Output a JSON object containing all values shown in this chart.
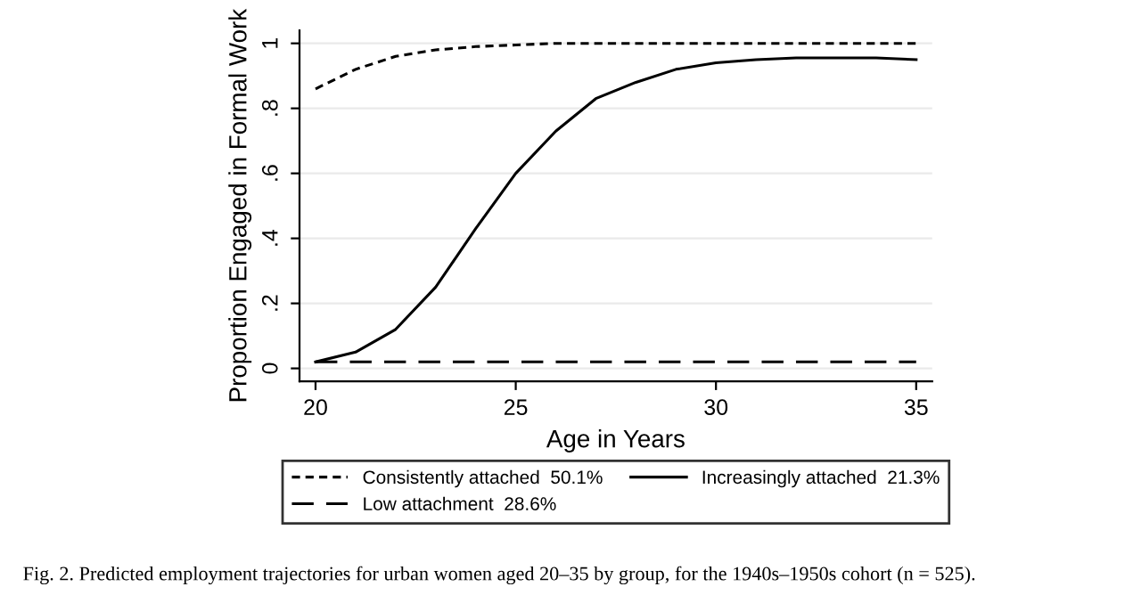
{
  "chart_data": {
    "type": "line",
    "xlabel": "Age in Years",
    "ylabel": "Proportion Engaged in Formal Work",
    "x": [
      20,
      21,
      22,
      23,
      24,
      25,
      26,
      27,
      28,
      29,
      30,
      31,
      32,
      33,
      34,
      35
    ],
    "series": [
      {
        "name": "Consistently attached  50.1%",
        "color": "#000000",
        "line_style": "dashed",
        "values": [
          0.86,
          0.92,
          0.96,
          0.98,
          0.99,
          0.995,
          1,
          1,
          1,
          1,
          1,
          1,
          1,
          1,
          1,
          1
        ]
      },
      {
        "name": "Low attachment  28.6%",
        "color": "#000000",
        "line_style": "dashed",
        "values": [
          0.02,
          0.02,
          0.02,
          0.02,
          0.02,
          0.02,
          0.02,
          0.02,
          0.02,
          0.02,
          0.02,
          0.02,
          0.02,
          0.02,
          0.02,
          0.02
        ]
      },
      {
        "name": "Increasingly attached  21.3%",
        "color": "#000000",
        "line_style": "solid",
        "values": [
          0.02,
          0.05,
          0.12,
          0.25,
          0.43,
          0.6,
          0.73,
          0.83,
          0.88,
          0.92,
          0.94,
          0.95,
          0.955,
          0.955,
          0.955,
          0.95
        ]
      }
    ],
    "xlim": [
      19.6,
      35.4
    ],
    "ylim": [
      -0.04,
      1.04
    ],
    "xticks": [
      20,
      25,
      30,
      35
    ],
    "yticks": [
      {
        "value": 0,
        "label": "0"
      },
      {
        "value": 0.2,
        "label": ".2"
      },
      {
        "value": 0.4,
        "label": ".4"
      },
      {
        "value": 0.6,
        "label": ".6"
      },
      {
        "value": 0.8,
        "label": ".8"
      },
      {
        "value": 1,
        "label": "1"
      }
    ],
    "grid": "y",
    "legend": "bottom",
    "marker": "none",
    "annotations": [
      "Fig. 2. Predicted employment trajectories for urban women aged 20–35 by group, for the 1940s–1950s cohort (n = 525)."
    ]
  }
}
